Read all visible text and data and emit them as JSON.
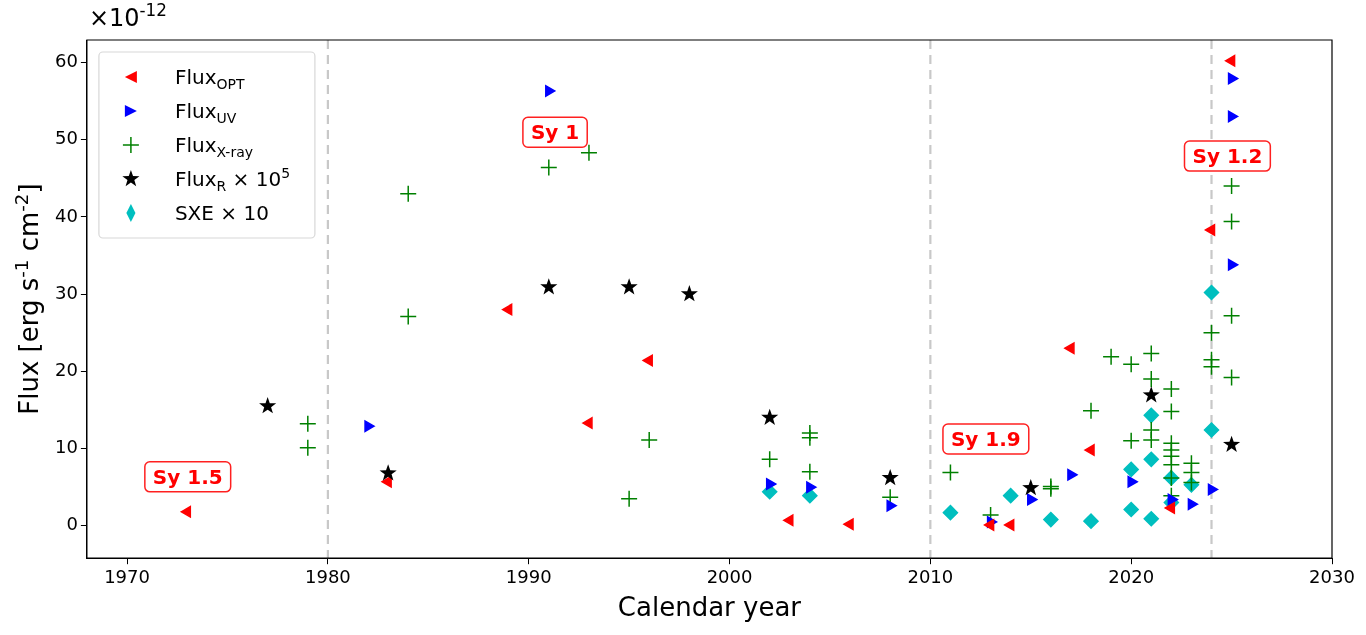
{
  "chart_data": {
    "type": "scatter",
    "xlabel": "Calendar year",
    "ylabel": "Flux [erg s$^{-1}$ cm$^{-2}$]",
    "xlim": [
      1968,
      2030
    ],
    "xticks": [
      1970,
      1980,
      1990,
      2000,
      2010,
      2020,
      2030
    ],
    "ylim": [
      -4.2,
      62.9
    ],
    "yticks": [
      0,
      10,
      20,
      30,
      40,
      50,
      60
    ],
    "grid": false,
    "legend": "top left",
    "series": [
      {
        "name": "Flux$_{OPT}$",
        "color": "#ff0000",
        "marker": "triangle-left",
        "x": [
          1973,
          1983,
          1989,
          1993,
          1996,
          2003,
          2006,
          2013,
          2014,
          2017,
          2018,
          2022,
          2024,
          2025
        ],
        "values": [
          1.8,
          5.7,
          28,
          13.3,
          21.4,
          0.7,
          0.2,
          0.1,
          0.1,
          23,
          9.8,
          2.3,
          38.3,
          60.2
        ]
      },
      {
        "name": "Flux$_{UV}$",
        "color": "#0000ff",
        "marker": "triangle-right",
        "x": [
          1982,
          1991,
          2002,
          2004,
          2008,
          2013,
          2015,
          2017,
          2020,
          2022,
          2023,
          2024,
          2025,
          2025,
          2025
        ],
        "values": [
          12.9,
          56.3,
          5.4,
          5.0,
          2.6,
          0.5,
          3.4,
          6.6,
          5.7,
          3.4,
          2.8,
          4.7,
          57.9,
          53.0,
          33.8
        ]
      },
      {
        "name": "Flux$_{X-ray}$",
        "color": "#008000",
        "marker": "cross",
        "x": [
          1979,
          1979,
          1984,
          1984,
          1991,
          1993,
          1995,
          1996,
          2002,
          2004,
          2004,
          2004,
          2008,
          2011,
          2013,
          2016,
          2016,
          2018,
          2019,
          2020,
          2020,
          2021,
          2021,
          2021,
          2021,
          2022,
          2022,
          2022,
          2022,
          2022,
          2022,
          2022,
          2022,
          2023,
          2023,
          2023,
          2024,
          2024,
          2024,
          2025,
          2025,
          2025,
          2025
        ],
        "values": [
          13.2,
          10.1,
          43,
          27.1,
          46.4,
          48.3,
          3.5,
          11.1,
          8.6,
          12,
          11.4,
          7,
          3.7,
          6.9,
          1.4,
          5.1,
          4.8,
          14.9,
          21.9,
          20.9,
          11,
          22.3,
          19,
          12.4,
          11.1,
          17.7,
          14.8,
          10.7,
          9.8,
          9,
          7.9,
          6.2,
          3.9,
          8.1,
          6.9,
          5.6,
          25,
          21.5,
          20.6,
          44,
          39.4,
          27.2,
          19.2
        ]
      },
      {
        "name": "Flux$_{R}$ × 10$^{5}$",
        "color": "#000000",
        "marker": "star",
        "x": [
          1977,
          1983,
          1991,
          1995,
          1998,
          2002,
          2008,
          2015,
          2021,
          2025
        ],
        "values": [
          15.5,
          6.8,
          30.9,
          30.9,
          30,
          14,
          6.2,
          4.9,
          16.9,
          10.5
        ]
      },
      {
        "name": "SXE × 10",
        "color": "#00bfbf",
        "marker": "diamond",
        "x": [
          2002,
          2004,
          2011,
          2014,
          2016,
          2018,
          2020,
          2020,
          2021,
          2021,
          2021,
          2022,
          2022,
          2023,
          2024,
          2024
        ],
        "values": [
          4.4,
          3.9,
          1.7,
          3.9,
          0.8,
          0.6,
          2.1,
          7.3,
          8.6,
          0.9,
          14.3,
          6.2,
          3,
          5.3,
          12.4,
          30.2
        ]
      }
    ],
    "ref_lines": [
      {
        "axis": "x",
        "value": 1980,
        "color": "#c8c8c8",
        "line_style": "dashed"
      },
      {
        "axis": "x",
        "value": 2010,
        "color": "#c8c8c8",
        "line_style": "dashed"
      },
      {
        "axis": "x",
        "value": 2024,
        "color": "#c8c8c8",
        "line_style": "dashed"
      }
    ],
    "annotations": [
      "×10$^{-12}$",
      "Sy 1.5",
      "Sy 1",
      "Sy 1.9",
      "Sy 1.2"
    ]
  }
}
